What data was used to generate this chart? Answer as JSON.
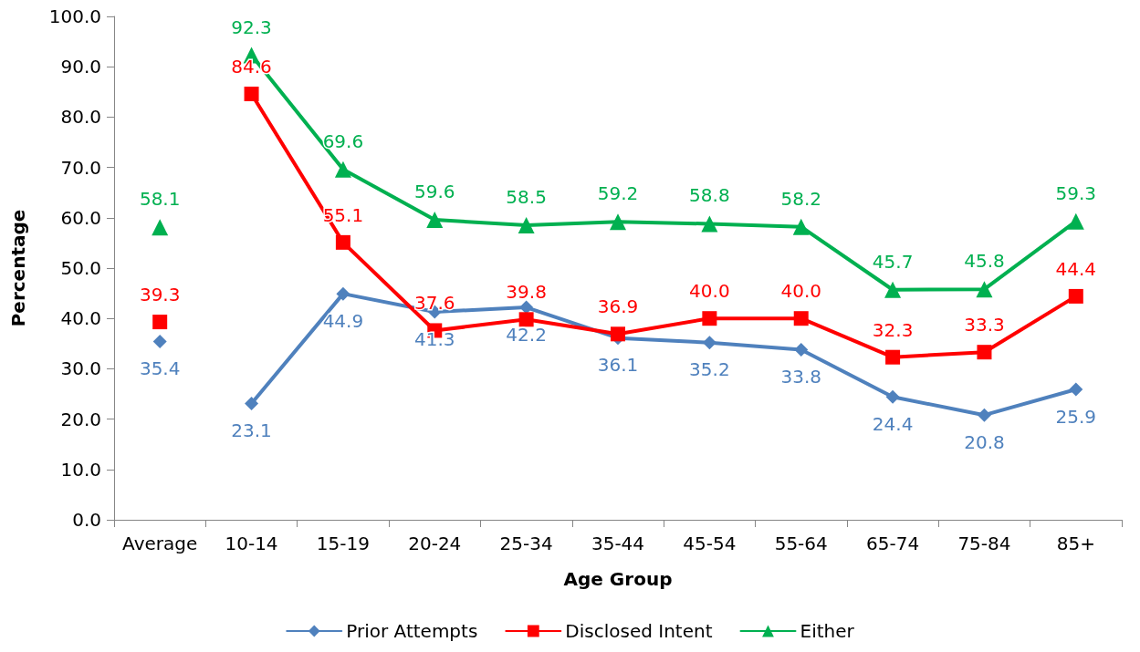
{
  "chart_data": {
    "type": "line",
    "xlabel": "Age Group",
    "ylabel": "Percentage",
    "categories": [
      "Average",
      "10-14",
      "15-19",
      "20-24",
      "25-34",
      "35-44",
      "45-54",
      "55-64",
      "65-74",
      "75-84",
      "85+"
    ],
    "series": [
      {
        "name": "Prior Attempts",
        "color": "#4f81bd",
        "marker": "diamond",
        "values": [
          null,
          23.1,
          44.9,
          41.3,
          42.2,
          36.1,
          35.2,
          33.8,
          24.4,
          20.8,
          25.9
        ],
        "value_labels": [
          null,
          "23.1",
          "44.9",
          "41.3",
          "42.2",
          "36.1",
          "35.2",
          "33.8",
          "24.4",
          "20.8",
          "25.9"
        ]
      },
      {
        "name": "Disclosed Intent",
        "color": "#ff0000",
        "marker": "square",
        "values": [
          null,
          84.6,
          55.1,
          37.6,
          39.8,
          36.9,
          40.0,
          40.0,
          32.3,
          33.3,
          44.4
        ],
        "value_labels": [
          null,
          "84.6",
          "55.1",
          "37.6",
          "39.8",
          "36.9",
          "40.0",
          "40.0",
          "32.3",
          "33.3",
          "44.4"
        ]
      },
      {
        "name": "Either",
        "color": "#00b050",
        "marker": "triangle",
        "values": [
          null,
          92.3,
          69.6,
          59.6,
          58.5,
          59.2,
          58.8,
          58.2,
          45.7,
          45.8,
          59.3
        ],
        "value_labels": [
          null,
          "92.3",
          "69.6",
          "59.6",
          "58.5",
          "59.2",
          "58.8",
          "58.2",
          "45.7",
          "45.8",
          "59.3"
        ]
      },
      {
        "type": "scatter",
        "color": "#4f81bd",
        "marker": "diamond",
        "x": [
          "Average"
        ],
        "values": [
          35.4
        ],
        "value_labels": [
          "35.4"
        ]
      },
      {
        "type": "scatter",
        "color": "#ff0000",
        "marker": "square",
        "x": [
          "Average"
        ],
        "values": [
          39.3
        ],
        "value_labels": [
          "39.3"
        ]
      },
      {
        "type": "scatter",
        "color": "#00b050",
        "marker": "triangle",
        "x": [
          "Average"
        ],
        "values": [
          58.1
        ],
        "value_labels": [
          "58.1"
        ]
      }
    ],
    "ylim": [
      0,
      100
    ],
    "yticks": [
      {
        "value": 0,
        "label": "0.0"
      },
      {
        "value": 10,
        "label": "10.0"
      },
      {
        "value": 20,
        "label": "20.0"
      },
      {
        "value": 30,
        "label": "30.0"
      },
      {
        "value": 40,
        "label": "40.0"
      },
      {
        "value": 50,
        "label": "50.0"
      },
      {
        "value": 60,
        "label": "60.0"
      },
      {
        "value": 70,
        "label": "70.0"
      },
      {
        "value": 80,
        "label": "80.0"
      },
      {
        "value": 90,
        "label": "90.0"
      },
      {
        "value": 100,
        "label": "100.0"
      }
    ],
    "grid": false,
    "legend": "bottom",
    "line_style": "solid"
  }
}
